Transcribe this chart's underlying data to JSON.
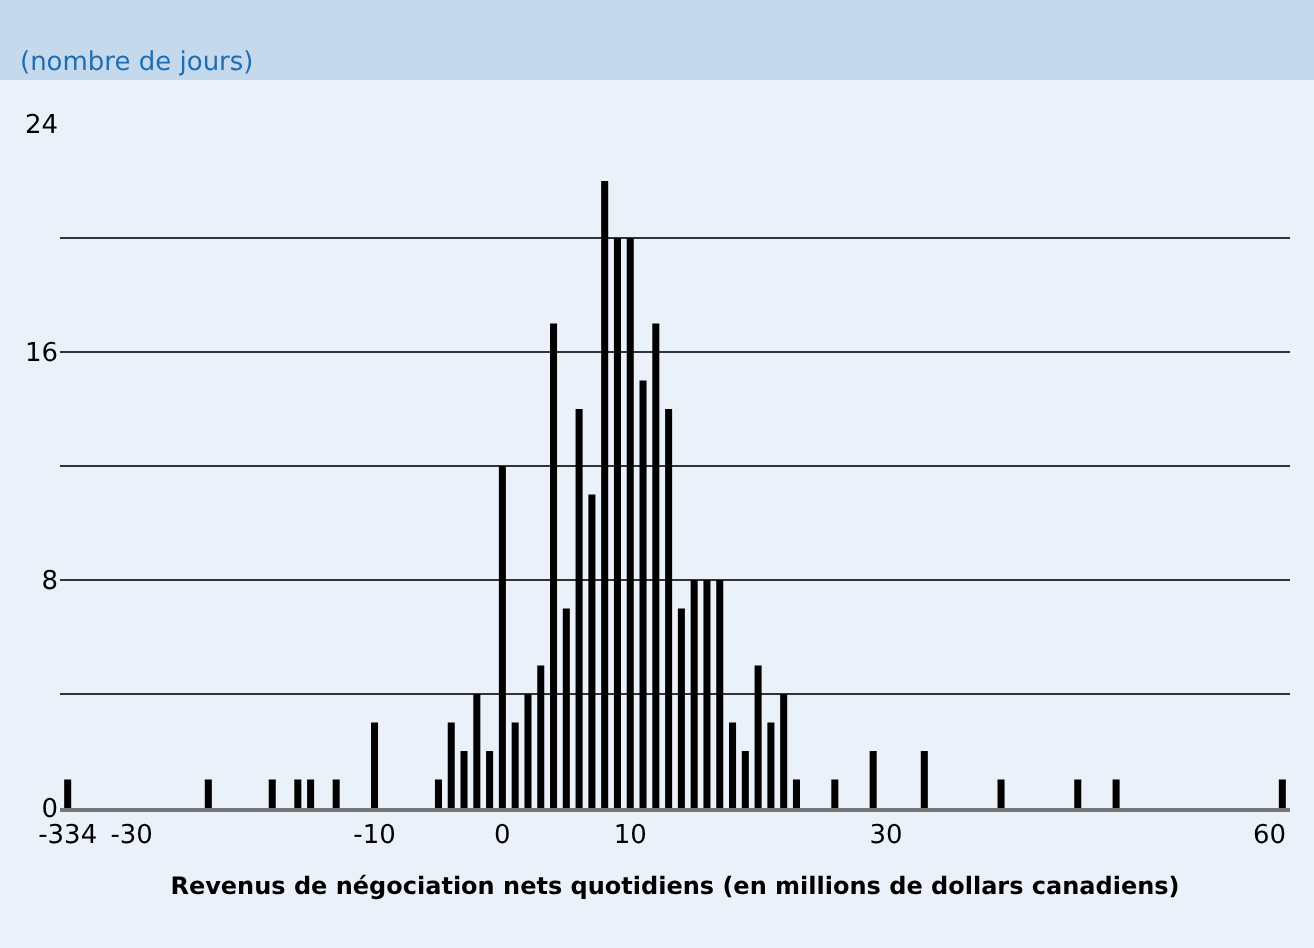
{
  "chart_data": {
    "type": "bar",
    "subtitle": "(nombre de jours)",
    "xlabel": "Revenus de négociation nets quotidiens (en millions de dollars canadiens)",
    "categories": [
      "-334",
      null,
      null,
      null,
      null,
      "-30",
      null,
      null,
      null,
      null,
      null,
      null,
      null,
      null,
      null,
      null,
      null,
      null,
      null,
      null,
      null,
      null,
      null,
      null,
      "-10",
      null,
      null,
      null,
      null,
      null,
      null,
      null,
      null,
      null,
      "0",
      null,
      null,
      null,
      null,
      null,
      null,
      null,
      null,
      null,
      "10",
      null,
      null,
      null,
      null,
      null,
      null,
      null,
      null,
      null,
      null,
      null,
      null,
      null,
      null,
      null,
      null,
      null,
      null,
      null,
      "30",
      null,
      null,
      null,
      null,
      null,
      null,
      null,
      null,
      null,
      null,
      null,
      null,
      null,
      null,
      null,
      null,
      null,
      null,
      null,
      null,
      null,
      null,
      null,
      null,
      null,
      null,
      null,
      null,
      null,
      "60",
      null
    ],
    "values": [
      1,
      null,
      null,
      null,
      null,
      0,
      0,
      0,
      0,
      0,
      0,
      1,
      0,
      0,
      0,
      0,
      1,
      0,
      1,
      1,
      0,
      1,
      0,
      0,
      3,
      0,
      0,
      0,
      0,
      1,
      3,
      2,
      4,
      2,
      12,
      3,
      4,
      5,
      17,
      7,
      14,
      11,
      22,
      20,
      20,
      15,
      17,
      14,
      7,
      8,
      8,
      8,
      3,
      2,
      5,
      3,
      4,
      1,
      0,
      0,
      1,
      0,
      0,
      2,
      0,
      0,
      0,
      2,
      0,
      0,
      0,
      0,
      0,
      1,
      0,
      0,
      0,
      0,
      0,
      1,
      0,
      0,
      1,
      0,
      0,
      0,
      0,
      0,
      0,
      0,
      0,
      0,
      0,
      0,
      0,
      1
    ],
    "color": "#000000",
    "ylim": [
      0,
      24
    ],
    "yticks": [
      0,
      {
        "value": 4,
        "label": null
      },
      8,
      {
        "value": 12,
        "label": null
      },
      16,
      {
        "value": 20,
        "label": null
      },
      24
    ],
    "grid": "y",
    "legend": false
  }
}
